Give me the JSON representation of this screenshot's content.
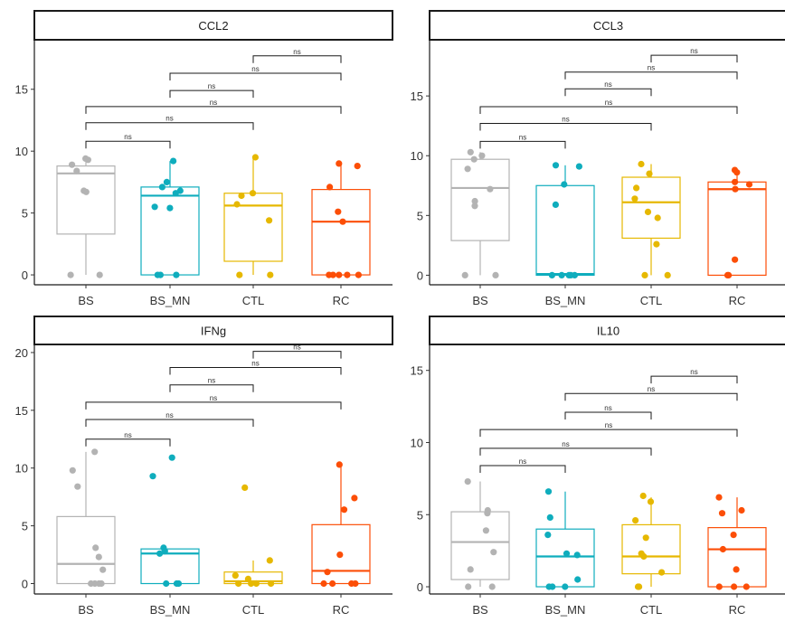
{
  "chart_data": [
    {
      "type": "box",
      "title": "CCL2",
      "categories": [
        "BS",
        "BS_MN",
        "CTL",
        "RC"
      ],
      "yticks": [
        0,
        5,
        10,
        15
      ],
      "ylim": [
        -0.8,
        19
      ],
      "grid": false,
      "boxes": [
        {
          "q1": 3.3,
          "median": 8.2,
          "q3": 8.8,
          "whisker_low": 0,
          "whisker_high": 9.4
        },
        {
          "q1": 0,
          "median": 6.4,
          "q3": 7.1,
          "whisker_low": 0,
          "whisker_high": 9.2
        },
        {
          "q1": 1.1,
          "median": 5.6,
          "q3": 6.6,
          "whisker_low": 0,
          "whisker_high": 9.5
        },
        {
          "q1": 0,
          "median": 4.3,
          "q3": 6.9,
          "whisker_low": 0,
          "whisker_high": 9.0
        }
      ],
      "points": [
        [
          9.4,
          9.3,
          8.9,
          8.4,
          6.8,
          6.7,
          0,
          0
        ],
        [
          9.2,
          7.5,
          7.1,
          6.8,
          6.6,
          5.5,
          5.4,
          0,
          0,
          0
        ],
        [
          9.5,
          6.6,
          6.4,
          5.7,
          4.4,
          0,
          0
        ],
        [
          9.0,
          8.8,
          7.1,
          5.1,
          4.3,
          0,
          0,
          0,
          0,
          0
        ]
      ],
      "comparisons": [
        {
          "from": 0,
          "to": 1,
          "label": "ns",
          "y": 10.8
        },
        {
          "from": 0,
          "to": 2,
          "label": "ns",
          "y": 12.3
        },
        {
          "from": 0,
          "to": 3,
          "label": "ns",
          "y": 13.6
        },
        {
          "from": 1,
          "to": 2,
          "label": "ns",
          "y": 14.9
        },
        {
          "from": 1,
          "to": 3,
          "label": "ns",
          "y": 16.3
        },
        {
          "from": 2,
          "to": 3,
          "label": "ns",
          "y": 17.7
        }
      ]
    },
    {
      "type": "box",
      "title": "CCL3",
      "categories": [
        "BS",
        "BS_MN",
        "CTL",
        "RC"
      ],
      "yticks": [
        0,
        5,
        10,
        15
      ],
      "ylim": [
        -0.8,
        19.7
      ],
      "grid": false,
      "boxes": [
        {
          "q1": 2.9,
          "median": 7.3,
          "q3": 9.7,
          "whisker_low": 0,
          "whisker_high": 10.3
        },
        {
          "q1": 0,
          "median": 0.1,
          "q3": 7.5,
          "whisker_low": 0,
          "whisker_high": 9.2
        },
        {
          "q1": 3.1,
          "median": 6.1,
          "q3": 8.2,
          "whisker_low": 0,
          "whisker_high": 9.3
        },
        {
          "q1": 0,
          "median": 7.2,
          "q3": 7.8,
          "whisker_low": 0,
          "whisker_high": 8.8
        }
      ],
      "points": [
        [
          10.3,
          10.0,
          9.7,
          8.9,
          7.2,
          6.2,
          5.8,
          0,
          0
        ],
        [
          9.2,
          9.1,
          7.6,
          5.9,
          0,
          0,
          0,
          0,
          0
        ],
        [
          9.3,
          8.5,
          7.3,
          6.4,
          5.3,
          4.8,
          2.6,
          0,
          0
        ],
        [
          8.8,
          8.6,
          7.8,
          7.6,
          7.2,
          1.3,
          0,
          0
        ]
      ],
      "comparisons": [
        {
          "from": 0,
          "to": 1,
          "label": "ns",
          "y": 11.2
        },
        {
          "from": 0,
          "to": 2,
          "label": "ns",
          "y": 12.7
        },
        {
          "from": 0,
          "to": 3,
          "label": "ns",
          "y": 14.1
        },
        {
          "from": 1,
          "to": 2,
          "label": "ns",
          "y": 15.6
        },
        {
          "from": 1,
          "to": 3,
          "label": "ns",
          "y": 17.0
        },
        {
          "from": 2,
          "to": 3,
          "label": "ns",
          "y": 18.4
        }
      ]
    },
    {
      "type": "box",
      "title": "IFNg",
      "categories": [
        "BS",
        "BS_MN",
        "CTL",
        "RC"
      ],
      "yticks": [
        0,
        5,
        10,
        15,
        20
      ],
      "ylim": [
        -0.9,
        20.7
      ],
      "grid": false,
      "boxes": [
        {
          "q1": 0,
          "median": 1.7,
          "q3": 5.8,
          "whisker_low": 0,
          "whisker_high": 11.4
        },
        {
          "q1": 0,
          "median": 2.6,
          "q3": 3.0,
          "whisker_low": 0,
          "whisker_high": 3.0
        },
        {
          "q1": 0,
          "median": 0.2,
          "q3": 1.0,
          "whisker_low": 0,
          "whisker_high": 2.0
        },
        {
          "q1": 0,
          "median": 1.1,
          "q3": 5.1,
          "whisker_low": 0,
          "whisker_high": 10.3
        }
      ],
      "points": [
        [
          11.4,
          9.8,
          8.4,
          3.1,
          2.3,
          1.2,
          0,
          0,
          0,
          0
        ],
        [
          10.9,
          9.3,
          3.1,
          2.8,
          2.6,
          0,
          0,
          0
        ],
        [
          8.3,
          2.0,
          0.7,
          0.4,
          0,
          0,
          0,
          0
        ],
        [
          10.3,
          7.4,
          6.4,
          2.5,
          1.0,
          0,
          0,
          0,
          0
        ]
      ],
      "comparisons": [
        {
          "from": 0,
          "to": 1,
          "label": "ns",
          "y": 12.5
        },
        {
          "from": 0,
          "to": 2,
          "label": "ns",
          "y": 14.2
        },
        {
          "from": 0,
          "to": 3,
          "label": "ns",
          "y": 15.7
        },
        {
          "from": 1,
          "to": 2,
          "label": "ns",
          "y": 17.2
        },
        {
          "from": 1,
          "to": 3,
          "label": "ns",
          "y": 18.7
        },
        {
          "from": 2,
          "to": 3,
          "label": "ns",
          "y": 20.1
        }
      ]
    },
    {
      "type": "box",
      "title": "IL10",
      "categories": [
        "BS",
        "BS_MN",
        "CTL",
        "RC"
      ],
      "yticks": [
        0,
        5,
        10,
        15
      ],
      "ylim": [
        -0.5,
        16.8
      ],
      "grid": false,
      "boxes": [
        {
          "q1": 0.5,
          "median": 3.1,
          "q3": 5.2,
          "whisker_low": 0,
          "whisker_high": 7.3
        },
        {
          "q1": 0,
          "median": 2.1,
          "q3": 4.0,
          "whisker_low": 0,
          "whisker_high": 6.6
        },
        {
          "q1": 0.9,
          "median": 2.1,
          "q3": 4.3,
          "whisker_low": 0,
          "whisker_high": 6.2
        },
        {
          "q1": 0,
          "median": 2.6,
          "q3": 4.1,
          "whisker_low": 0,
          "whisker_high": 6.2
        }
      ],
      "points": [
        [
          7.3,
          5.3,
          5.1,
          3.9,
          2.4,
          1.2,
          0,
          0
        ],
        [
          6.6,
          4.8,
          3.6,
          2.3,
          2.2,
          0.5,
          0,
          0,
          0
        ],
        [
          6.3,
          5.9,
          4.6,
          3.4,
          2.3,
          2.1,
          1.0,
          0,
          0
        ],
        [
          6.2,
          5.3,
          5.1,
          3.6,
          2.6,
          1.2,
          0,
          0,
          0
        ]
      ],
      "comparisons": [
        {
          "from": 0,
          "to": 1,
          "label": "ns",
          "y": 8.4
        },
        {
          "from": 0,
          "to": 2,
          "label": "ns",
          "y": 9.6
        },
        {
          "from": 0,
          "to": 3,
          "label": "ns",
          "y": 10.9
        },
        {
          "from": 1,
          "to": 2,
          "label": "ns",
          "y": 12.1
        },
        {
          "from": 1,
          "to": 3,
          "label": "ns",
          "y": 13.4
        },
        {
          "from": 2,
          "to": 3,
          "label": "ns",
          "y": 14.6
        }
      ]
    }
  ],
  "colors": [
    "#b3b3b3",
    "#0fadbd",
    "#e6b800",
    "#fc4e07"
  ]
}
